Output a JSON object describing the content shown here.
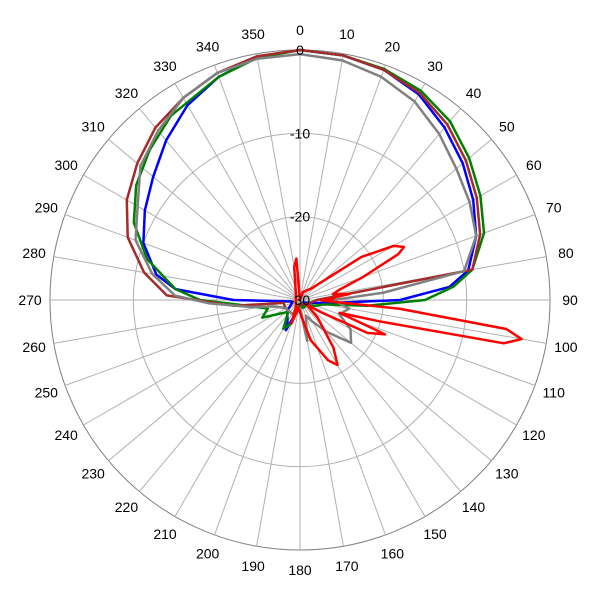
{
  "chart_data": {
    "type": "polar",
    "title": "",
    "angle_unit": "degrees",
    "angle_zero": "top",
    "angle_direction": "clockwise",
    "angle_ticks": [
      0,
      10,
      20,
      30,
      40,
      50,
      60,
      70,
      80,
      90,
      100,
      110,
      120,
      130,
      140,
      150,
      160,
      170,
      180,
      190,
      200,
      210,
      220,
      230,
      240,
      250,
      260,
      270,
      280,
      290,
      300,
      310,
      320,
      330,
      340,
      350
    ],
    "radial_ticks": [
      0,
      -10,
      -20,
      -30
    ],
    "radial_range": [
      -30,
      0
    ],
    "grid": true,
    "series": [
      {
        "color": "#0000ff",
        "points": [
          [
            0,
            0
          ],
          [
            10,
            -0.2
          ],
          [
            20,
            -0.6
          ],
          [
            30,
            -1.5
          ],
          [
            40,
            -3
          ],
          [
            50,
            -4.5
          ],
          [
            60,
            -6
          ],
          [
            70,
            -7.5
          ],
          [
            80,
            -9.5
          ],
          [
            85,
            -12
          ],
          [
            90,
            -18
          ],
          [
            95,
            -26
          ],
          [
            100,
            -28
          ],
          [
            110,
            -29
          ],
          [
            130,
            -29.5
          ],
          [
            150,
            -29
          ],
          [
            170,
            -29.5
          ],
          [
            190,
            -29
          ],
          [
            200,
            -28
          ],
          [
            205,
            -26
          ],
          [
            210,
            -27
          ],
          [
            230,
            -28
          ],
          [
            250,
            -29
          ],
          [
            260,
            -29
          ],
          [
            270,
            -22
          ],
          [
            275,
            -15
          ],
          [
            280,
            -12.5
          ],
          [
            290,
            -10
          ],
          [
            300,
            -8.5
          ],
          [
            310,
            -7
          ],
          [
            320,
            -5
          ],
          [
            330,
            -3
          ],
          [
            340,
            -1.5
          ],
          [
            350,
            -0.4
          ],
          [
            360,
            0
          ]
        ]
      },
      {
        "color": "#008000",
        "points": [
          [
            0,
            0
          ],
          [
            10,
            -0.2
          ],
          [
            20,
            -0.5
          ],
          [
            30,
            -1
          ],
          [
            40,
            -2
          ],
          [
            50,
            -3.5
          ],
          [
            60,
            -5
          ],
          [
            70,
            -6.5
          ],
          [
            80,
            -9
          ],
          [
            85,
            -11.5
          ],
          [
            90,
            -15
          ],
          [
            95,
            -22
          ],
          [
            100,
            -27
          ],
          [
            110,
            -28
          ],
          [
            130,
            -29
          ],
          [
            160,
            -29
          ],
          [
            190,
            -29.5
          ],
          [
            200,
            -27
          ],
          [
            210,
            -26
          ],
          [
            225,
            -28
          ],
          [
            245,
            -25
          ],
          [
            255,
            -26
          ],
          [
            265,
            -23
          ],
          [
            270,
            -18
          ],
          [
            275,
            -15
          ],
          [
            285,
            -11
          ],
          [
            295,
            -8
          ],
          [
            305,
            -6
          ],
          [
            315,
            -4.5
          ],
          [
            325,
            -3
          ],
          [
            340,
            -1.5
          ],
          [
            350,
            -0.5
          ],
          [
            360,
            0
          ]
        ]
      },
      {
        "color": "#a52a2a",
        "points": [
          [
            0,
            0
          ],
          [
            10,
            -0.2
          ],
          [
            20,
            -0.6
          ],
          [
            30,
            -1.3
          ],
          [
            40,
            -2.5
          ],
          [
            50,
            -4
          ],
          [
            60,
            -5.5
          ],
          [
            70,
            -7
          ],
          [
            80,
            -9
          ],
          [
            90,
            -28
          ],
          [
            120,
            -29
          ],
          [
            180,
            -29.5
          ],
          [
            200,
            -28
          ],
          [
            240,
            -28
          ],
          [
            260,
            -28
          ],
          [
            265,
            -22
          ],
          [
            272,
            -14
          ],
          [
            280,
            -11
          ],
          [
            290,
            -8
          ],
          [
            300,
            -6
          ],
          [
            310,
            -4.5
          ],
          [
            320,
            -3
          ],
          [
            330,
            -2
          ],
          [
            340,
            -1
          ],
          [
            350,
            -0.3
          ],
          [
            360,
            0
          ]
        ]
      },
      {
        "color": "#808080",
        "points": [
          [
            0,
            -0.5
          ],
          [
            10,
            -0.8
          ],
          [
            20,
            -1.5
          ],
          [
            30,
            -2.5
          ],
          [
            40,
            -4
          ],
          [
            50,
            -5.5
          ],
          [
            60,
            -6.5
          ],
          [
            70,
            -7.5
          ],
          [
            80,
            -10
          ],
          [
            85,
            -20
          ],
          [
            90,
            -26
          ],
          [
            100,
            -24
          ],
          [
            110,
            -25
          ],
          [
            120,
            -23
          ],
          [
            130,
            -22
          ],
          [
            140,
            -25
          ],
          [
            150,
            -27
          ],
          [
            160,
            -28
          ],
          [
            170,
            -25
          ],
          [
            180,
            -29
          ],
          [
            200,
            -28
          ],
          [
            240,
            -28
          ],
          [
            255,
            -27
          ],
          [
            262,
            -24
          ],
          [
            268,
            -19
          ],
          [
            272,
            -15
          ],
          [
            280,
            -12
          ],
          [
            290,
            -9
          ],
          [
            300,
            -7.5
          ],
          [
            310,
            -5
          ],
          [
            320,
            -3.5
          ],
          [
            330,
            -2
          ],
          [
            340,
            -1
          ],
          [
            350,
            -0.6
          ],
          [
            360,
            -0.5
          ]
        ]
      },
      {
        "color": "#ff0000",
        "points": [
          [
            0,
            -30
          ],
          [
            20,
            -29
          ],
          [
            45,
            -28
          ],
          [
            55,
            -21
          ],
          [
            60,
            -17
          ],
          [
            63,
            -16
          ],
          [
            65,
            -17
          ],
          [
            70,
            -22
          ],
          [
            75,
            -25
          ],
          [
            80,
            -26
          ],
          [
            83,
            -24
          ],
          [
            86,
            -26
          ],
          [
            88,
            -26
          ],
          [
            90,
            -27.5
          ],
          [
            92,
            -27
          ],
          [
            95,
            -18
          ],
          [
            98,
            -5
          ],
          [
            100,
            -3
          ],
          [
            102,
            -5
          ],
          [
            105,
            -20
          ],
          [
            108,
            -25
          ],
          [
            112,
            -19
          ],
          [
            116,
            -21
          ],
          [
            120,
            -27
          ],
          [
            125,
            -29
          ],
          [
            135,
            -27
          ],
          [
            145,
            -23
          ],
          [
            150,
            -21
          ],
          [
            155,
            -22
          ],
          [
            165,
            -25
          ],
          [
            175,
            -28
          ],
          [
            190,
            -29
          ],
          [
            200,
            -27
          ],
          [
            210,
            -29
          ],
          [
            330,
            -29
          ],
          [
            350,
            -26
          ],
          [
            355,
            -25
          ],
          [
            360,
            -30
          ]
        ]
      }
    ]
  }
}
